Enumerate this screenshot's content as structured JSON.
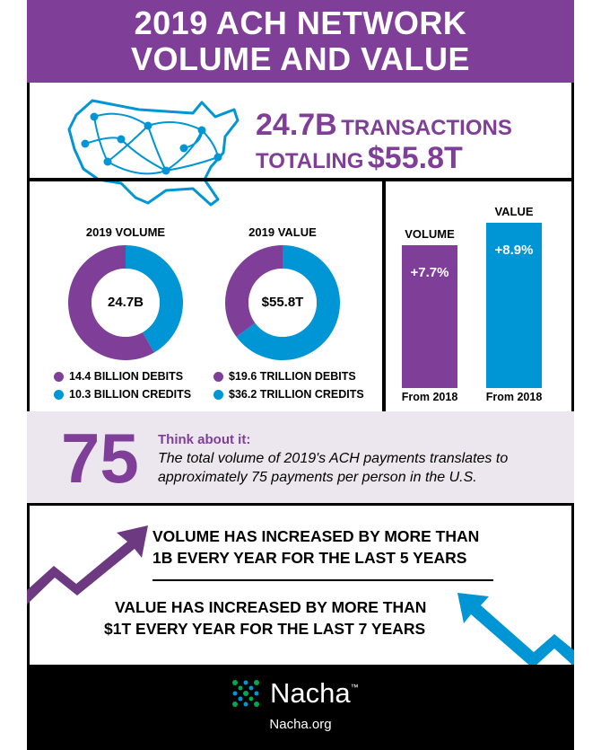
{
  "header": {
    "line1": "2019 ACH NETWORK",
    "line2": "VOLUME AND VALUE"
  },
  "headline": {
    "transactions_value": "24.7B",
    "transactions_label": "TRANSACTIONS",
    "totaling_label": "TOTALING",
    "totaling_value": "$55.8T"
  },
  "colors": {
    "purple": "#7f3f98",
    "blue": "#0096d6",
    "light_bg": "#ece7ef",
    "black": "#000000"
  },
  "icons": {
    "map": "us-network-map-icon",
    "logo": "nacha-dots-logo-icon",
    "arrow_up": "purple-arrow-up-icon",
    "arrow_down": "blue-arrow-down-icon"
  },
  "chart_data": [
    {
      "type": "pie",
      "title": "2019 VOLUME",
      "center_label": "24.7B",
      "slices": [
        {
          "legend": "14.4 BILLION DEBITS",
          "value": 14.4,
          "color": "#7f3f98"
        },
        {
          "legend": "10.3 BILLION CREDITS",
          "value": 10.3,
          "color": "#0096d6"
        }
      ]
    },
    {
      "type": "pie",
      "title": "2019 VALUE",
      "center_label": "$55.8T",
      "slices": [
        {
          "legend": "$19.6 TRILLION DEBITS",
          "value": 19.6,
          "color": "#7f3f98"
        },
        {
          "legend": "$36.2 TRILLION CREDITS",
          "value": 36.2,
          "color": "#0096d6"
        }
      ]
    },
    {
      "type": "bar",
      "categories": [
        "VOLUME",
        "VALUE"
      ],
      "values": [
        7.7,
        8.9
      ],
      "value_labels": [
        "+7.7%",
        "+8.9%"
      ],
      "footers": [
        "From 2018",
        "From 2018"
      ],
      "colors": [
        "#7f3f98",
        "#0096d6"
      ],
      "ylim": [
        0,
        8.9
      ]
    }
  ],
  "think": {
    "number": "75",
    "heading": "Think about it:",
    "text": "The total volume of 2019's ACH payments translates to approximately 75 payments per person in the U.S."
  },
  "statements": {
    "volume_line1": "VOLUME HAS INCREASED BY MORE THAN",
    "volume_line2": "1B EVERY YEAR FOR THE LAST 5 YEARS",
    "value_line1": "VALUE HAS INCREASED BY MORE THAN",
    "value_line2": "$1T EVERY YEAR FOR THE LAST 7 YEARS"
  },
  "footer": {
    "brand": "Nacha",
    "trademark": "™",
    "site": "Nacha.org"
  }
}
